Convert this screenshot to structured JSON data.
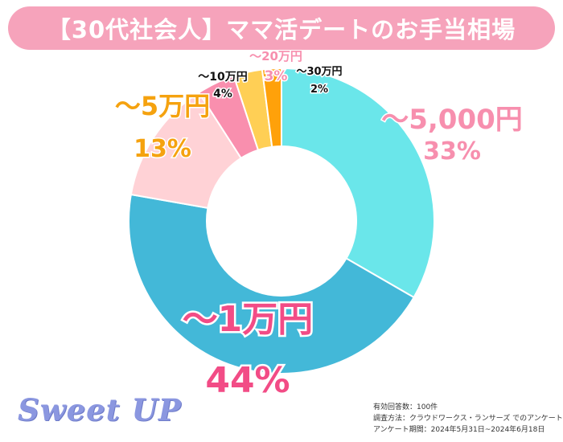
{
  "title": "【30代社会人】ママ活デートのお手当相場",
  "brand": "Sweet UP",
  "notes": [
    "有効回答数：100件",
    "調査方法：クラウドワークス・ランサーズ でのアンケート",
    "アンケート期間：2024年5月31日~2024年6月18日"
  ],
  "colors": {
    "title_bg": "#f6a3bb",
    "brand": "#8b97e0"
  },
  "chart_data": {
    "type": "pie",
    "donut": true,
    "title": "【30代社会人】ママ活デートのお手当相場",
    "unit": "%",
    "categories": [
      "～5,000円",
      "～1万円",
      "～5万円",
      "～10万円",
      "～20万円",
      "～30万円"
    ],
    "values": [
      33,
      44,
      13,
      4,
      3,
      2
    ],
    "labels": [
      "33%",
      "44%",
      "13%",
      "4%",
      "3%",
      "2%"
    ],
    "colors": [
      "#6ae6ea",
      "#43b8d8",
      "#ffd2d6",
      "#f98fae",
      "#ffcf55",
      "#ffa10a"
    ],
    "label_colors": [
      "#f78fae",
      "#f24c86",
      "#f5a20f",
      "#111111",
      "#f78fae",
      "#111111"
    ],
    "legend": "none"
  }
}
